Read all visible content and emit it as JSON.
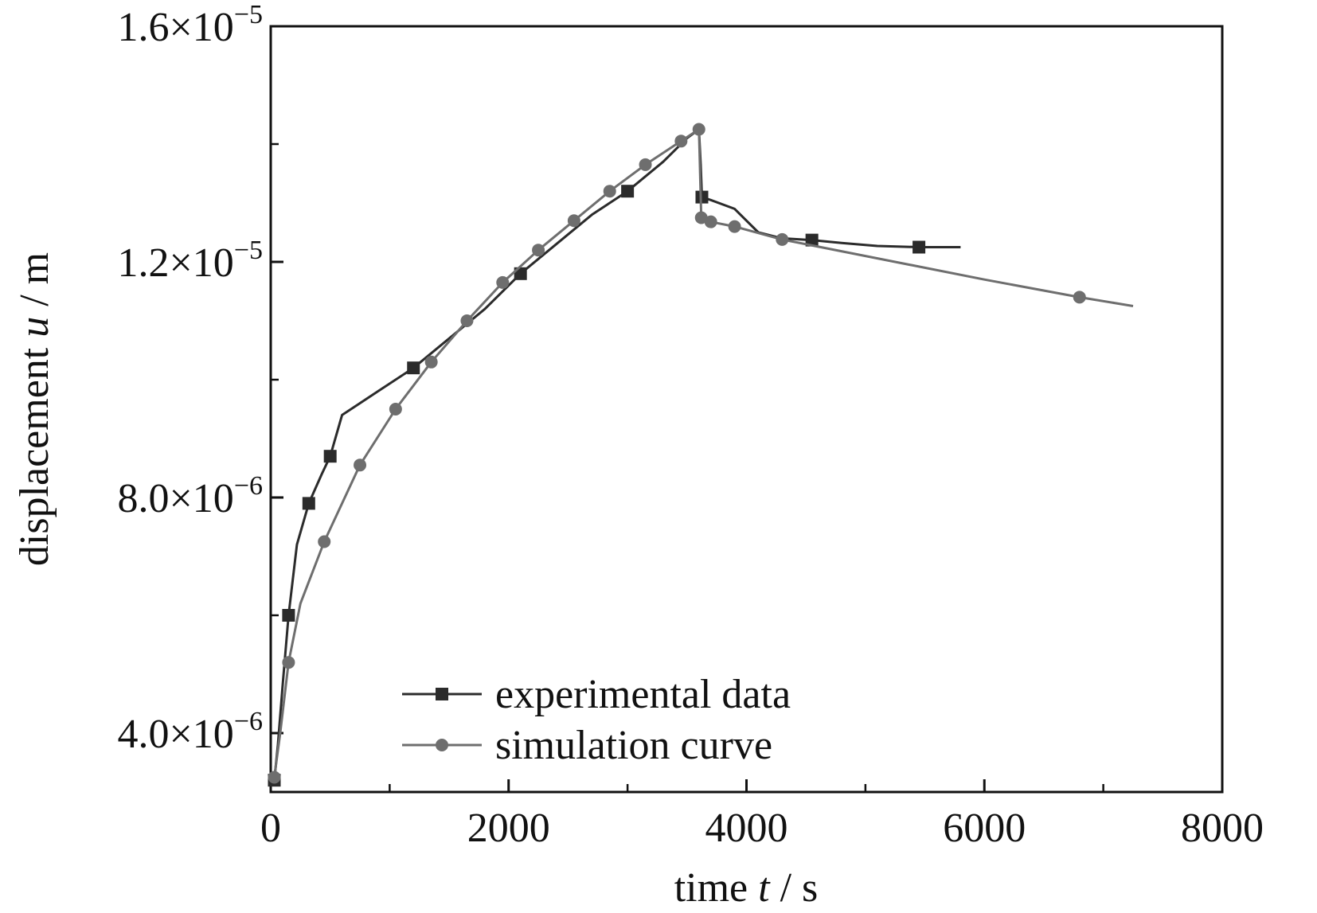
{
  "chart_data": {
    "type": "line",
    "xlabel": {
      "prefix": "time ",
      "var": "t",
      "suffix": " / s"
    },
    "ylabel": {
      "prefix": "displacement ",
      "var": "u",
      "suffix": " / m"
    },
    "xlim": [
      0,
      8000
    ],
    "ylim": [
      3e-06,
      1.6e-05
    ],
    "x_ticks": [
      {
        "value": 0,
        "label": "0"
      },
      {
        "value": 2000,
        "label": "2000"
      },
      {
        "value": 4000,
        "label": "4000"
      },
      {
        "value": 6000,
        "label": "6000"
      },
      {
        "value": 8000,
        "label": "8000"
      }
    ],
    "x_minor_ticks": [
      1000,
      3000,
      5000,
      7000
    ],
    "y_ticks": [
      {
        "value": 4e-06,
        "mantissa": "4.0",
        "exp": "−6"
      },
      {
        "value": 8e-06,
        "mantissa": "8.0",
        "exp": "−6"
      },
      {
        "value": 1.2e-05,
        "mantissa": "1.2",
        "exp": "−5"
      },
      {
        "value": 1.6e-05,
        "mantissa": "1.6",
        "exp": "−5"
      }
    ],
    "y_minor_ticks": [
      6e-06,
      1e-05,
      1.4e-05
    ],
    "grid": false,
    "legend_position": "bottom-center",
    "series": [
      {
        "name": "experimental data",
        "color": "#2b2b2b",
        "marker": "square",
        "x": [
          30,
          60,
          100,
          150,
          220,
          320,
          430,
          500,
          600,
          900,
          1200,
          1500,
          1800,
          2100,
          2400,
          2700,
          3000,
          3300,
          3500,
          3600,
          3615,
          3625,
          3700,
          3900,
          4100,
          4300,
          4550,
          4800,
          5100,
          5450,
          5800
        ],
        "y": [
          3.2e-06,
          3.8e-06,
          4.8e-06,
          6e-06,
          7.2e-06,
          7.9e-06,
          8.4e-06,
          8.7e-06,
          9.4e-06,
          9.8e-06,
          1.02e-05,
          1.07e-05,
          1.12e-05,
          1.18e-05,
          1.23e-05,
          1.28e-05,
          1.32e-05,
          1.37e-05,
          1.41e-05,
          1.425e-05,
          1.365e-05,
          1.31e-05,
          1.305e-05,
          1.29e-05,
          1.25e-05,
          1.24e-05,
          1.237e-05,
          1.232e-05,
          1.227e-05,
          1.225e-05,
          1.225e-05
        ],
        "markers_at": [
          30,
          150,
          320,
          500,
          1200,
          2100,
          3000,
          3650,
          4550,
          5450
        ]
      },
      {
        "name": "simulation curve",
        "color": "#6e6e6e",
        "marker": "circle",
        "x": [
          30,
          80,
          150,
          250,
          450,
          750,
          1050,
          1350,
          1650,
          1950,
          2250,
          2550,
          2850,
          3150,
          3450,
          3600,
          3620,
          3700,
          3900,
          4300,
          5000,
          6000,
          6800,
          7250
        ],
        "y": [
          3.25e-06,
          4e-06,
          5.2e-06,
          6.2e-06,
          7.25e-06,
          8.55e-06,
          9.5e-06,
          1.03e-05,
          1.1e-05,
          1.165e-05,
          1.22e-05,
          1.27e-05,
          1.32e-05,
          1.365e-05,
          1.405e-05,
          1.425e-05,
          1.275e-05,
          1.268e-05,
          1.26e-05,
          1.238e-05,
          1.21e-05,
          1.17e-05,
          1.14e-05,
          1.125e-05
        ],
        "markers_at": [
          30,
          150,
          450,
          750,
          1050,
          1350,
          1650,
          1950,
          2250,
          2550,
          2850,
          3150,
          3450,
          3600,
          3620,
          3700,
          3900,
          4300,
          6800
        ]
      }
    ]
  }
}
